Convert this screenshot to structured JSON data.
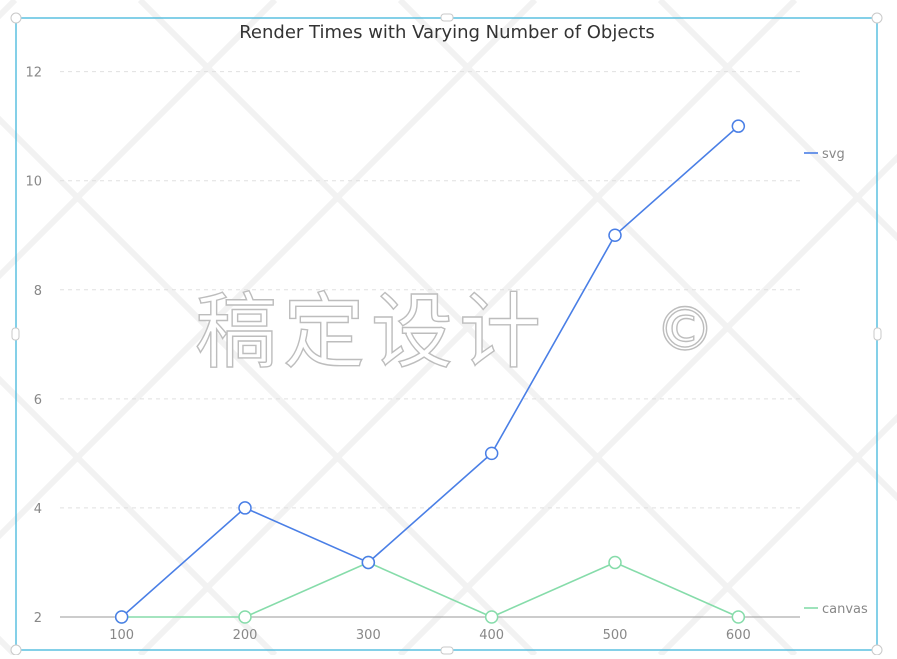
{
  "chart_data": {
    "type": "line",
    "title": "Render Times with Varying Number of Objects",
    "xlabel": "",
    "ylabel": "",
    "x": [
      100,
      200,
      300,
      400,
      500,
      600
    ],
    "ylim": [
      2,
      12.8
    ],
    "yticks": [
      2,
      4,
      6,
      8,
      10,
      12
    ],
    "grid": true,
    "legend_position": "right",
    "series": [
      {
        "name": "svg",
        "color": "#4a7fe6",
        "values": [
          2,
          4,
          3,
          5,
          9,
          11
        ]
      },
      {
        "name": "canvas",
        "color": "#86dcaa",
        "values": [
          2,
          2,
          3,
          2,
          3,
          2
        ]
      }
    ]
  },
  "watermark": {
    "text": "稿定设计",
    "symbol": "©"
  },
  "colors": {
    "frame": "#5bc0e0",
    "grid": "#e0e0e0",
    "axis": "#9a9a9a"
  }
}
